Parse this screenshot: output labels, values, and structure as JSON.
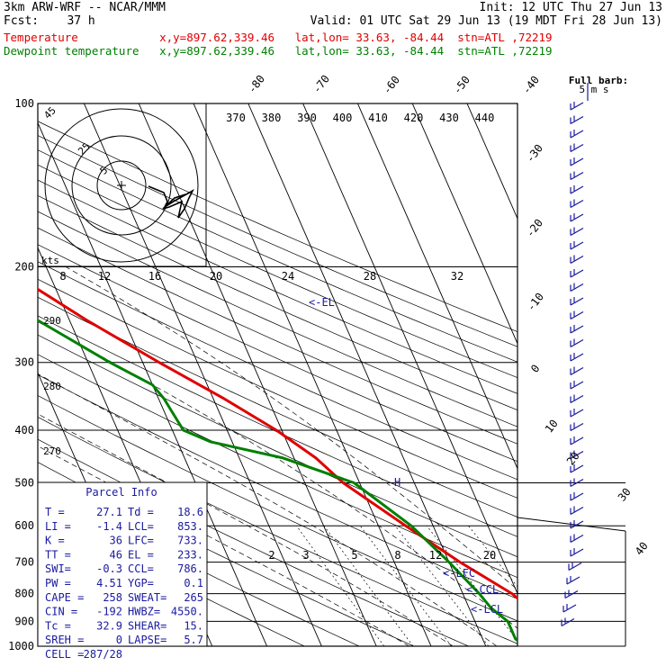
{
  "header": {
    "model": "3km ARW-WRF -- NCAR/MMM",
    "init": "Init: 12 UTC Thu 27 Jun 13",
    "fcst": "Fcst:    37 h",
    "valid": "Valid: 01 UTC Sat 29 Jun 13 (19 MDT Fri 28 Jun 13)",
    "temp_line": "Temperature            x,y=897.62,339.46   lat,lon= 33.63, -84.44  stn=ATL ,72219",
    "dew_line": "Dewpoint temperature   x,y=897.62,339.46   lat,lon= 33.63, -84.44  stn=ATL ,72219"
  },
  "colors": {
    "temperature": "#e00000",
    "dewpoint": "#008000",
    "annotation": "#1a1aa0"
  },
  "icons": {
    "barb_legend": "wind-barb-icon",
    "hodograph_center": "crosshair-icon"
  },
  "chart_data": {
    "type": "skew-t",
    "pressure_levels": [
      "100",
      "200",
      "300",
      "400",
      "500",
      "600",
      "700",
      "800",
      "900",
      "1000"
    ],
    "isotherm_labels": [
      "-80",
      "-70",
      "-60",
      "-50",
      "-40",
      "-30",
      "-20",
      "-10",
      "0",
      "10",
      "20",
      "30",
      "40"
    ],
    "theta_labels": [
      "370",
      "380",
      "390",
      "400",
      "410",
      "420",
      "430",
      "440"
    ],
    "theta_side_labels": [
      "290",
      "280",
      "270"
    ],
    "mixing_ratio_labels": [
      "2",
      "3",
      "5",
      "8",
      "12",
      "20"
    ],
    "hodo_speed_scale": [
      "8",
      "12",
      "16",
      "20",
      "24",
      "28",
      "32"
    ],
    "hodo_units": "kts",
    "hodo_ring_labels": [
      "5",
      "25",
      "45"
    ],
    "barb_legend": [
      "Full barb:",
      "5 m s"
    ],
    "levels_marked": {
      "el": "<-EL",
      "lfc": "<-LFC",
      "ccl": "<-CCL",
      "lcl": "<-LCL",
      "h": "H"
    },
    "temperature": {
      "pressure": [
        1000,
        970,
        950,
        900,
        850,
        800,
        700,
        600,
        500,
        450,
        400,
        350,
        300,
        250,
        200,
        180,
        150,
        130,
        110,
        100
      ],
      "value": [
        26,
        25,
        24,
        24,
        21,
        19,
        12,
        5,
        -3,
        -6,
        -11,
        -18,
        -27,
        -37,
        -48,
        -53,
        -60,
        -64,
        -61,
        -58
      ]
    },
    "dewpoint": {
      "pressure": [
        1000,
        970,
        950,
        900,
        850,
        800,
        700,
        600,
        500,
        450,
        420,
        400,
        350,
        330,
        300,
        250,
        200,
        180,
        150,
        130,
        120,
        110,
        100
      ],
      "value": [
        17,
        16,
        16,
        16,
        14,
        13,
        10,
        6,
        -1,
        -12,
        -24,
        -28,
        -29,
        -30,
        -36,
        -46,
        -63,
        -71,
        -82,
        -89,
        -92,
        -94,
        -95
      ]
    },
    "parcel_info": {
      "title": "Parcel Info",
      "rows": [
        [
          "T  =",
          "27.1",
          "Td =",
          "18.6"
        ],
        [
          "LI =",
          "-1.4",
          "LCL=",
          "853."
        ],
        [
          "K  =",
          "36",
          "LFC=",
          "733."
        ],
        [
          "TT =",
          "46",
          "EL =",
          "233."
        ],
        [
          "SWI=",
          "-0.3",
          "CCL=",
          "786."
        ],
        [
          "PW =",
          "4.51",
          "YGP=",
          "0.1"
        ],
        [
          "CAPE =",
          "258",
          "SWEAT=",
          "265"
        ],
        [
          "CIN =",
          "-192",
          "HWBZ=",
          "4550."
        ],
        [
          "Tc =",
          "32.9",
          "SHEAR=",
          "15."
        ],
        [
          "SREH =",
          "0",
          "LAPSE=",
          "5.7"
        ],
        [
          "CELL =",
          "287/28",
          "",
          ""
        ]
      ]
    }
  }
}
